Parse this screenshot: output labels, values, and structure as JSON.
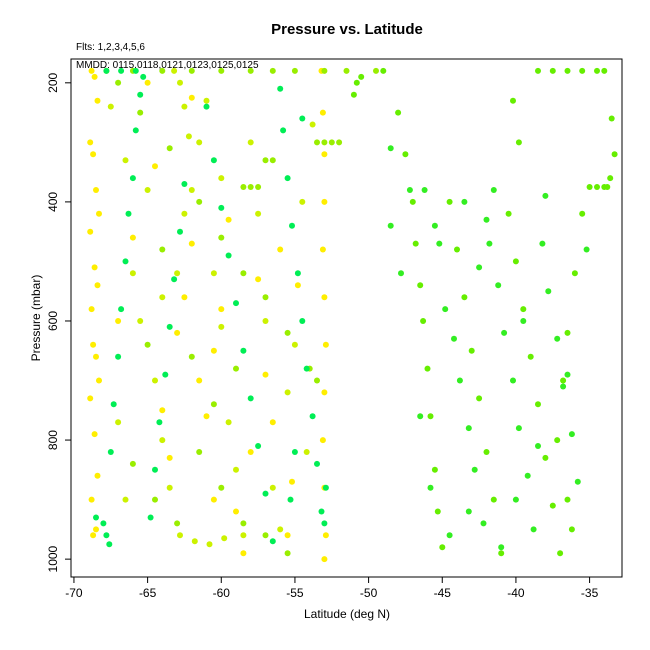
{
  "chart_data": {
    "type": "scatter",
    "title": "Pressure vs. Latitude",
    "subtitle_flts": "Flts: 1,2,3,4,5,6",
    "subtitle_mmdd": "MMDD: 0115,0118,0121,0123,0125,0125",
    "xlabel": "Latitude (deg N)",
    "ylabel": "Pressure (mbar)",
    "xlim": [
      -70.2,
      -32.8
    ],
    "ylim_reversed": [
      1030,
      160
    ],
    "x_ticks": [
      -70,
      -65,
      -60,
      -55,
      -50,
      -45,
      -40,
      -35
    ],
    "y_ticks": [
      200,
      400,
      600,
      800,
      1000
    ],
    "x_tick_labels": [
      "-70",
      "-65",
      "-60",
      "-55",
      "-50",
      "-45",
      "-40",
      "-35"
    ],
    "y_tick_labels": [
      "200",
      "400",
      "600",
      "800",
      "1000"
    ],
    "grid": false,
    "legend": "none",
    "colors": {
      "flight1": "#ffee00",
      "flight2": "#ccf200",
      "flight3": "#99ee00",
      "flight4": "#66ee00",
      "flight5": "#33ee22",
      "flight6": "#00ee55"
    },
    "series": [
      {
        "color_key": "flight1",
        "points": [
          [
            -68.8,
            180
          ],
          [
            -68.6,
            190
          ],
          [
            -68.4,
            230
          ],
          [
            -68.9,
            300
          ],
          [
            -68.7,
            320
          ],
          [
            -68.5,
            380
          ],
          [
            -68.3,
            420
          ],
          [
            -68.9,
            450
          ],
          [
            -68.6,
            510
          ],
          [
            -68.4,
            540
          ],
          [
            -68.8,
            580
          ],
          [
            -68.7,
            640
          ],
          [
            -68.5,
            660
          ],
          [
            -68.3,
            700
          ],
          [
            -68.9,
            730
          ],
          [
            -68.6,
            790
          ],
          [
            -68.4,
            860
          ],
          [
            -68.8,
            900
          ],
          [
            -68.5,
            950
          ],
          [
            -68.7,
            960
          ],
          [
            -63.0,
            620
          ],
          [
            -62.5,
            560
          ],
          [
            -62.0,
            470
          ],
          [
            -61.5,
            700
          ],
          [
            -61.0,
            760
          ],
          [
            -60.5,
            650
          ],
          [
            -60.0,
            580
          ],
          [
            -59.5,
            430
          ],
          [
            -59.0,
            920
          ],
          [
            -58.5,
            990
          ],
          [
            -57.5,
            530
          ],
          [
            -57.0,
            690
          ],
          [
            -56.5,
            770
          ],
          [
            -55.5,
            960
          ],
          [
            -55.2,
            870
          ],
          [
            -54.8,
            540
          ],
          [
            -53.2,
            180
          ],
          [
            -53.1,
            250
          ],
          [
            -53.0,
            320
          ],
          [
            -53.0,
            400
          ],
          [
            -53.1,
            480
          ],
          [
            -53.0,
            560
          ],
          [
            -52.9,
            640
          ],
          [
            -53.0,
            720
          ],
          [
            -53.1,
            800
          ],
          [
            -53.0,
            880
          ],
          [
            -52.9,
            960
          ],
          [
            -53.0,
            1000
          ],
          [
            -65.0,
            200
          ],
          [
            -64.5,
            340
          ],
          [
            -66.0,
            460
          ],
          [
            -67.0,
            600
          ],
          [
            -64.0,
            750
          ],
          [
            -63.5,
            830
          ],
          [
            -60.5,
            900
          ],
          [
            -58.0,
            820
          ],
          [
            -62.0,
            225
          ],
          [
            -56.0,
            480
          ]
        ]
      },
      {
        "color_key": "flight2",
        "points": [
          [
            -67.5,
            240
          ],
          [
            -66.5,
            330
          ],
          [
            -66.0,
            520
          ],
          [
            -65.5,
            600
          ],
          [
            -64.5,
            700
          ],
          [
            -64.0,
            800
          ],
          [
            -63.5,
            880
          ],
          [
            -62.5,
            420
          ],
          [
            -62.0,
            380
          ],
          [
            -61.5,
            300
          ],
          [
            -61.0,
            230
          ],
          [
            -60.5,
            520
          ],
          [
            -60.0,
            610
          ],
          [
            -59.5,
            770
          ],
          [
            -59.0,
            850
          ],
          [
            -58.5,
            960
          ],
          [
            -57.5,
            420
          ],
          [
            -57.0,
            600
          ],
          [
            -56.5,
            880
          ],
          [
            -56.0,
            950
          ],
          [
            -55.5,
            720
          ],
          [
            -55.0,
            640
          ],
          [
            -54.5,
            400
          ],
          [
            -53.8,
            270
          ],
          [
            -54.2,
            820
          ],
          [
            -62.8,
            960
          ],
          [
            -61.8,
            970
          ],
          [
            -60.8,
            975
          ],
          [
            -59.8,
            965
          ],
          [
            -63.2,
            180
          ],
          [
            -62.8,
            200
          ],
          [
            -62.5,
            240
          ],
          [
            -62.2,
            290
          ],
          [
            -63.0,
            520
          ],
          [
            -64.0,
            560
          ],
          [
            -65.0,
            380
          ],
          [
            -66.5,
            900
          ],
          [
            -67.0,
            770
          ],
          [
            -60.0,
            360
          ],
          [
            -58.0,
            300
          ]
        ]
      },
      {
        "color_key": "flight3",
        "points": [
          [
            -67.8,
            180
          ],
          [
            -66.0,
            180
          ],
          [
            -64.0,
            180
          ],
          [
            -62.0,
            180
          ],
          [
            -60.0,
            180
          ],
          [
            -58.0,
            180
          ],
          [
            -56.5,
            180
          ],
          [
            -55.0,
            180
          ],
          [
            -53.0,
            180
          ],
          [
            -51.5,
            180
          ],
          [
            -49.5,
            180
          ],
          [
            -67.0,
            200
          ],
          [
            -65.5,
            250
          ],
          [
            -63.5,
            310
          ],
          [
            -61.5,
            400
          ],
          [
            -60.0,
            460
          ],
          [
            -58.5,
            520
          ],
          [
            -57.0,
            560
          ],
          [
            -55.5,
            620
          ],
          [
            -54.0,
            680
          ],
          [
            -53.5,
            700
          ],
          [
            -66.0,
            840
          ],
          [
            -64.5,
            900
          ],
          [
            -63.0,
            940
          ],
          [
            -61.5,
            820
          ],
          [
            -60.0,
            880
          ],
          [
            -58.5,
            940
          ],
          [
            -57.0,
            960
          ],
          [
            -55.5,
            990
          ],
          [
            -65.0,
            640
          ],
          [
            -64.0,
            480
          ],
          [
            -62.0,
            660
          ],
          [
            -60.5,
            740
          ],
          [
            -59.0,
            680
          ],
          [
            -58.5,
            375
          ],
          [
            -58.0,
            375
          ],
          [
            -57.5,
            375
          ],
          [
            -57.0,
            330
          ],
          [
            -56.5,
            330
          ],
          [
            -53.5,
            300
          ],
          [
            -53.0,
            300
          ],
          [
            -52.5,
            300
          ],
          [
            -52.0,
            300
          ]
        ]
      },
      {
        "color_key": "flight4",
        "points": [
          [
            -50.5,
            190
          ],
          [
            -50.8,
            200
          ],
          [
            -51.0,
            220
          ],
          [
            -49.0,
            180
          ],
          [
            -48.0,
            250
          ],
          [
            -47.5,
            320
          ],
          [
            -47.0,
            400
          ],
          [
            -46.8,
            470
          ],
          [
            -46.5,
            540
          ],
          [
            -46.3,
            600
          ],
          [
            -46.0,
            680
          ],
          [
            -45.8,
            760
          ],
          [
            -45.5,
            850
          ],
          [
            -45.3,
            920
          ],
          [
            -45.0,
            980
          ],
          [
            -44.5,
            400
          ],
          [
            -44.0,
            480
          ],
          [
            -43.5,
            560
          ],
          [
            -43.0,
            650
          ],
          [
            -42.5,
            730
          ],
          [
            -42.0,
            820
          ],
          [
            -41.5,
            900
          ],
          [
            -41.0,
            990
          ],
          [
            -40.5,
            420
          ],
          [
            -40.0,
            500
          ],
          [
            -39.5,
            580
          ],
          [
            -39.0,
            660
          ],
          [
            -38.5,
            740
          ],
          [
            -38.0,
            830
          ],
          [
            -37.5,
            910
          ],
          [
            -37.0,
            990
          ],
          [
            -38.5,
            180
          ],
          [
            -37.5,
            180
          ],
          [
            -36.5,
            180
          ],
          [
            -35.5,
            180
          ],
          [
            -34.5,
            180
          ],
          [
            -34.0,
            180
          ],
          [
            -33.5,
            260
          ],
          [
            -33.3,
            320
          ],
          [
            -33.6,
            360
          ],
          [
            -34.5,
            375
          ],
          [
            -34.0,
            375
          ],
          [
            -33.8,
            375
          ],
          [
            -35.0,
            375
          ],
          [
            -35.5,
            420
          ],
          [
            -36.0,
            520
          ],
          [
            -36.5,
            620
          ],
          [
            -36.8,
            700
          ],
          [
            -37.2,
            800
          ],
          [
            -36.5,
            900
          ],
          [
            -36.2,
            950
          ],
          [
            -39.8,
            300
          ],
          [
            -40.2,
            230
          ]
        ]
      },
      {
        "color_key": "flight5",
        "points": [
          [
            -48.5,
            440
          ],
          [
            -47.8,
            520
          ],
          [
            -46.2,
            380
          ],
          [
            -45.5,
            440
          ],
          [
            -44.8,
            580
          ],
          [
            -44.2,
            630
          ],
          [
            -43.8,
            700
          ],
          [
            -43.2,
            780
          ],
          [
            -42.8,
            850
          ],
          [
            -42.2,
            940
          ],
          [
            -41.8,
            470
          ],
          [
            -41.2,
            540
          ],
          [
            -40.8,
            620
          ],
          [
            -40.2,
            700
          ],
          [
            -39.8,
            780
          ],
          [
            -39.2,
            860
          ],
          [
            -38.8,
            950
          ],
          [
            -38.2,
            470
          ],
          [
            -37.8,
            550
          ],
          [
            -37.2,
            630
          ],
          [
            -36.8,
            710
          ],
          [
            -36.2,
            790
          ],
          [
            -35.8,
            870
          ],
          [
            -35.2,
            480
          ],
          [
            -48.5,
            310
          ],
          [
            -47.2,
            380
          ],
          [
            -45.2,
            470
          ],
          [
            -43.5,
            400
          ],
          [
            -42.0,
            430
          ],
          [
            -41.5,
            380
          ],
          [
            -39.5,
            600
          ],
          [
            -38.0,
            390
          ],
          [
            -46.5,
            760
          ],
          [
            -45.8,
            880
          ],
          [
            -44.5,
            960
          ],
          [
            -43.2,
            920
          ],
          [
            -42.5,
            510
          ],
          [
            -41.0,
            980
          ],
          [
            -40.0,
            900
          ],
          [
            -38.5,
            810
          ],
          [
            -36.5,
            690
          ]
        ]
      },
      {
        "color_key": "flight6",
        "points": [
          [
            -68.0,
            940
          ],
          [
            -67.8,
            960
          ],
          [
            -67.6,
            975
          ],
          [
            -67.5,
            820
          ],
          [
            -67.3,
            740
          ],
          [
            -67.0,
            660
          ],
          [
            -66.8,
            580
          ],
          [
            -66.5,
            500
          ],
          [
            -66.3,
            420
          ],
          [
            -66.0,
            360
          ],
          [
            -65.8,
            280
          ],
          [
            -65.5,
            220
          ],
          [
            -65.3,
            190
          ],
          [
            -64.8,
            930
          ],
          [
            -64.5,
            850
          ],
          [
            -64.2,
            770
          ],
          [
            -63.8,
            690
          ],
          [
            -63.5,
            610
          ],
          [
            -63.2,
            530
          ],
          [
            -62.8,
            450
          ],
          [
            -62.5,
            370
          ],
          [
            -61.0,
            240
          ],
          [
            -60.5,
            330
          ],
          [
            -60.0,
            410
          ],
          [
            -59.5,
            490
          ],
          [
            -59.0,
            570
          ],
          [
            -58.5,
            650
          ],
          [
            -58.0,
            730
          ],
          [
            -57.5,
            810
          ],
          [
            -57.0,
            890
          ],
          [
            -56.5,
            970
          ],
          [
            -55.8,
            280
          ],
          [
            -55.5,
            360
          ],
          [
            -55.2,
            440
          ],
          [
            -54.8,
            520
          ],
          [
            -54.5,
            600
          ],
          [
            -54.2,
            680
          ],
          [
            -53.8,
            760
          ],
          [
            -53.5,
            840
          ],
          [
            -53.2,
            920
          ],
          [
            -52.9,
            880
          ],
          [
            -53.0,
            940
          ],
          [
            -55.0,
            820
          ],
          [
            -55.3,
            900
          ],
          [
            -56.0,
            210
          ],
          [
            -54.5,
            260
          ],
          [
            -68.5,
            930
          ],
          [
            -67.8,
            180
          ],
          [
            -66.8,
            180
          ],
          [
            -65.8,
            180
          ]
        ]
      }
    ]
  }
}
